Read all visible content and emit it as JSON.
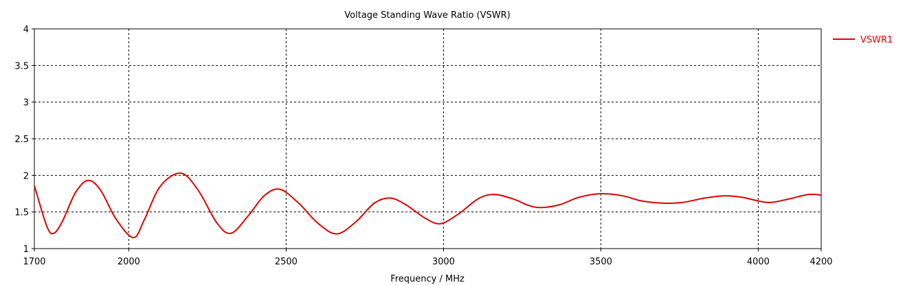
{
  "chart_data": {
    "type": "line",
    "title": "Voltage Standing Wave Ratio (VSWR)",
    "xlabel": "Frequency / MHz",
    "ylabel": "",
    "xlim": [
      1700,
      4200
    ],
    "ylim": [
      1,
      4
    ],
    "x_ticks": [
      "1700",
      "2000",
      "2500",
      "3000",
      "3500",
      "4000",
      "4200"
    ],
    "x_tick_values": [
      1700,
      2000,
      2500,
      3000,
      3500,
      4000,
      4200
    ],
    "y_ticks": [
      "1",
      "1.5",
      "2",
      "2.5",
      "3",
      "3.5",
      "4"
    ],
    "y_tick_values": [
      1,
      1.5,
      2,
      2.5,
      3,
      3.5,
      4
    ],
    "grid": true,
    "legend_position": "top-right",
    "series": [
      {
        "name": "VSWR1",
        "color": "#e00000",
        "points": [
          [
            1700,
            1.86
          ],
          [
            1740,
            1.3
          ],
          [
            1762,
            1.21
          ],
          [
            1790,
            1.38
          ],
          [
            1830,
            1.76
          ],
          [
            1870,
            1.93
          ],
          [
            1910,
            1.8
          ],
          [
            1960,
            1.4
          ],
          [
            2015,
            1.15
          ],
          [
            2050,
            1.4
          ],
          [
            2100,
            1.85
          ],
          [
            2165,
            2.03
          ],
          [
            2220,
            1.8
          ],
          [
            2280,
            1.35
          ],
          [
            2325,
            1.21
          ],
          [
            2380,
            1.45
          ],
          [
            2430,
            1.72
          ],
          [
            2480,
            1.81
          ],
          [
            2540,
            1.62
          ],
          [
            2600,
            1.35
          ],
          [
            2660,
            1.2
          ],
          [
            2720,
            1.36
          ],
          [
            2780,
            1.62
          ],
          [
            2830,
            1.69
          ],
          [
            2880,
            1.6
          ],
          [
            2940,
            1.42
          ],
          [
            2990,
            1.34
          ],
          [
            3050,
            1.48
          ],
          [
            3110,
            1.68
          ],
          [
            3160,
            1.74
          ],
          [
            3220,
            1.68
          ],
          [
            3270,
            1.59
          ],
          [
            3310,
            1.56
          ],
          [
            3370,
            1.6
          ],
          [
            3430,
            1.7
          ],
          [
            3500,
            1.75
          ],
          [
            3570,
            1.72
          ],
          [
            3630,
            1.65
          ],
          [
            3700,
            1.62
          ],
          [
            3760,
            1.63
          ],
          [
            3830,
            1.69
          ],
          [
            3890,
            1.72
          ],
          [
            3950,
            1.7
          ],
          [
            4000,
            1.65
          ],
          [
            4040,
            1.63
          ],
          [
            4100,
            1.68
          ],
          [
            4160,
            1.74
          ],
          [
            4200,
            1.73
          ]
        ]
      }
    ]
  }
}
